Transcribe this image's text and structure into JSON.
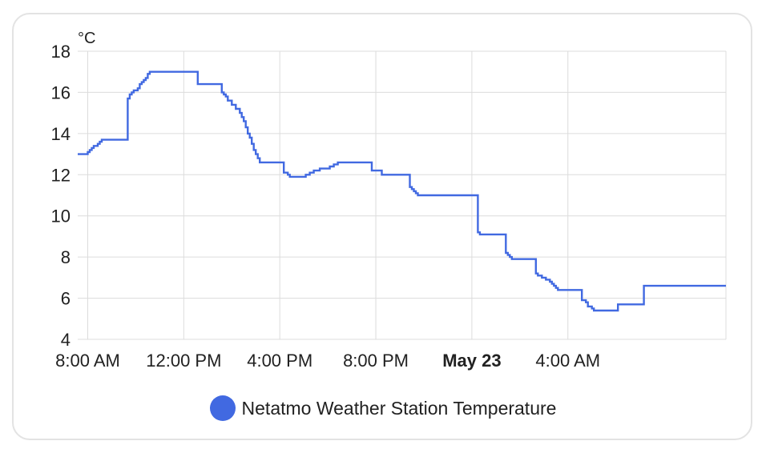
{
  "chart_data": {
    "type": "line",
    "title": "",
    "ylabel": "°C",
    "xlabel": "",
    "ylim": [
      4,
      18
    ],
    "xlim": [
      "2024-05-22T07:35",
      "2024-05-23T10:35"
    ],
    "yticks": [
      4,
      6,
      8,
      10,
      12,
      14,
      16,
      18
    ],
    "xticks": [
      {
        "t": "2024-05-22T08:00",
        "label": "8:00 AM",
        "bold": false
      },
      {
        "t": "2024-05-22T12:00",
        "label": "12:00 PM",
        "bold": false
      },
      {
        "t": "2024-05-22T16:00",
        "label": "4:00 PM",
        "bold": false
      },
      {
        "t": "2024-05-22T20:00",
        "label": "8:00 PM",
        "bold": false
      },
      {
        "t": "2024-05-23T00:00",
        "label": "May 23",
        "bold": true
      },
      {
        "t": "2024-05-23T04:00",
        "label": "4:00 AM",
        "bold": false
      }
    ],
    "grid": true,
    "step": true,
    "legend_position": "bottom",
    "series": [
      {
        "name": "Netatmo Weather Station Temperature",
        "color": "#4169e1",
        "points": [
          [
            "2024-05-22T07:35",
            13.0
          ],
          [
            "2024-05-22T07:55",
            13.0
          ],
          [
            "2024-05-22T08:00",
            13.1
          ],
          [
            "2024-05-22T08:05",
            13.2
          ],
          [
            "2024-05-22T08:10",
            13.3
          ],
          [
            "2024-05-22T08:15",
            13.4
          ],
          [
            "2024-05-22T08:25",
            13.5
          ],
          [
            "2024-05-22T08:30",
            13.6
          ],
          [
            "2024-05-22T08:35",
            13.7
          ],
          [
            "2024-05-22T09:40",
            15.7
          ],
          [
            "2024-05-22T09:45",
            15.9
          ],
          [
            "2024-05-22T09:50",
            16.0
          ],
          [
            "2024-05-22T09:55",
            16.1
          ],
          [
            "2024-05-22T10:05",
            16.2
          ],
          [
            "2024-05-22T10:10",
            16.4
          ],
          [
            "2024-05-22T10:15",
            16.5
          ],
          [
            "2024-05-22T10:20",
            16.6
          ],
          [
            "2024-05-22T10:25",
            16.7
          ],
          [
            "2024-05-22T10:30",
            16.9
          ],
          [
            "2024-05-22T10:35",
            17.0
          ],
          [
            "2024-05-22T12:35",
            16.4
          ],
          [
            "2024-05-22T13:35",
            16.0
          ],
          [
            "2024-05-22T13:40",
            15.9
          ],
          [
            "2024-05-22T13:45",
            15.8
          ],
          [
            "2024-05-22T13:50",
            15.6
          ],
          [
            "2024-05-22T14:00",
            15.4
          ],
          [
            "2024-05-22T14:10",
            15.2
          ],
          [
            "2024-05-22T14:20",
            15.0
          ],
          [
            "2024-05-22T14:25",
            14.8
          ],
          [
            "2024-05-22T14:30",
            14.6
          ],
          [
            "2024-05-22T14:35",
            14.3
          ],
          [
            "2024-05-22T14:40",
            14.0
          ],
          [
            "2024-05-22T14:45",
            13.8
          ],
          [
            "2024-05-22T14:50",
            13.5
          ],
          [
            "2024-05-22T14:55",
            13.2
          ],
          [
            "2024-05-22T15:00",
            13.0
          ],
          [
            "2024-05-22T15:05",
            12.8
          ],
          [
            "2024-05-22T15:10",
            12.6
          ],
          [
            "2024-05-22T16:10",
            12.1
          ],
          [
            "2024-05-22T16:20",
            12.0
          ],
          [
            "2024-05-22T16:25",
            11.9
          ],
          [
            "2024-05-22T17:05",
            12.0
          ],
          [
            "2024-05-22T17:15",
            12.1
          ],
          [
            "2024-05-22T17:25",
            12.2
          ],
          [
            "2024-05-22T17:40",
            12.3
          ],
          [
            "2024-05-22T18:05",
            12.4
          ],
          [
            "2024-05-22T18:15",
            12.5
          ],
          [
            "2024-05-22T18:25",
            12.6
          ],
          [
            "2024-05-22T19:50",
            12.2
          ],
          [
            "2024-05-22T20:15",
            12.0
          ],
          [
            "2024-05-22T21:25",
            11.4
          ],
          [
            "2024-05-22T21:30",
            11.3
          ],
          [
            "2024-05-22T21:35",
            11.2
          ],
          [
            "2024-05-22T21:40",
            11.1
          ],
          [
            "2024-05-22T21:45",
            11.0
          ],
          [
            "2024-05-23T00:15",
            9.2
          ],
          [
            "2024-05-23T00:20",
            9.1
          ],
          [
            "2024-05-23T01:25",
            8.2
          ],
          [
            "2024-05-23T01:30",
            8.1
          ],
          [
            "2024-05-23T01:35",
            8.0
          ],
          [
            "2024-05-23T01:40",
            7.9
          ],
          [
            "2024-05-23T02:40",
            7.2
          ],
          [
            "2024-05-23T02:45",
            7.1
          ],
          [
            "2024-05-23T02:55",
            7.0
          ],
          [
            "2024-05-23T03:05",
            6.9
          ],
          [
            "2024-05-23T03:15",
            6.8
          ],
          [
            "2024-05-23T03:20",
            6.7
          ],
          [
            "2024-05-23T03:25",
            6.6
          ],
          [
            "2024-05-23T03:30",
            6.5
          ],
          [
            "2024-05-23T03:35",
            6.4
          ],
          [
            "2024-05-23T04:35",
            5.9
          ],
          [
            "2024-05-23T04:45",
            5.8
          ],
          [
            "2024-05-23T04:50",
            5.6
          ],
          [
            "2024-05-23T05:00",
            5.5
          ],
          [
            "2024-05-23T05:05",
            5.4
          ],
          [
            "2024-05-23T06:05",
            5.7
          ],
          [
            "2024-05-23T07:10",
            6.6
          ],
          [
            "2024-05-23T10:35",
            6.6
          ]
        ]
      }
    ]
  },
  "legend": {
    "label": "Netatmo Weather Station Temperature",
    "color": "#4169e1",
    "icon": "filled-circle-icon"
  }
}
